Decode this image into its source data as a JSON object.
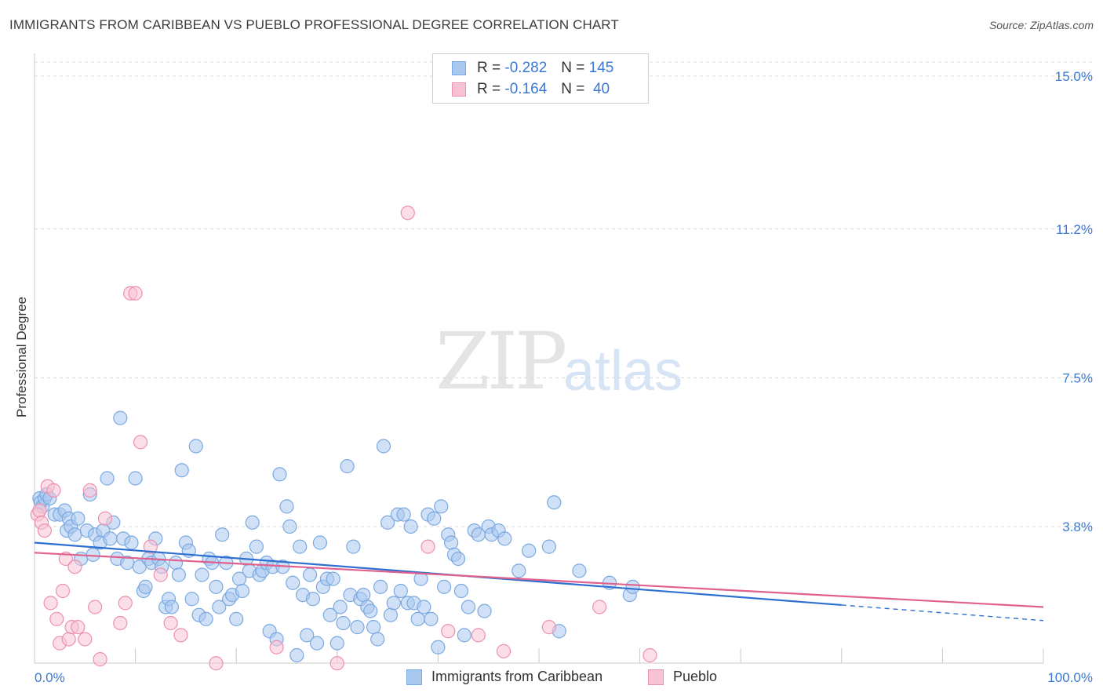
{
  "title": "IMMIGRANTS FROM CARIBBEAN VS PUEBLO PROFESSIONAL DEGREE CORRELATION CHART",
  "source": "Source: ZipAtlas.com",
  "watermark": {
    "zip": "ZIP",
    "atlas": "atlas"
  },
  "legend": {
    "rows": [
      {
        "r_label": "R =",
        "r_value": "-0.282",
        "n_label": "N =",
        "n_value": "145"
      },
      {
        "r_label": "R =",
        "r_value": "-0.164",
        "n_label": "N =",
        "n_value": "40"
      }
    ]
  },
  "colors": {
    "blue_fill": "#a9c8f0",
    "blue_stroke": "#7aa8e0",
    "blue_line": "#2f6fd1",
    "pink_fill": "#f7c2d4",
    "pink_stroke": "#ec8fb0",
    "pink_line": "#e0608e",
    "tick_label": "#3a78d4",
    "grid": "#d8d8d8"
  },
  "chart_data": {
    "type": "scatter",
    "title": "IMMIGRANTS FROM CARIBBEAN VS PUEBLO PROFESSIONAL DEGREE CORRELATION CHART",
    "xlabel": "",
    "ylabel": "Professional Degree",
    "xlim": [
      0,
      100
    ],
    "ylim": [
      0,
      15.5
    ],
    "x_tick_labels": [
      "0.0%",
      "100.0%"
    ],
    "y_ticks": [
      3.8,
      7.5,
      11.2,
      15.0
    ],
    "y_tick_labels": [
      "3.8%",
      "7.5%",
      "11.2%",
      "15.0%"
    ],
    "grid": "horizontal dashed",
    "legend_position": "top-center",
    "series": [
      {
        "name": "Immigrants from Caribbean",
        "color": "#a9c8f0",
        "points": [
          [
            0.5,
            4.5
          ],
          [
            0.6,
            4.4
          ],
          [
            0.8,
            4.3
          ],
          [
            1.0,
            4.5
          ],
          [
            1.2,
            4.6
          ],
          [
            1.5,
            4.5
          ],
          [
            2.0,
            4.1
          ],
          [
            2.5,
            4.1
          ],
          [
            3.0,
            4.2
          ],
          [
            3.2,
            3.7
          ],
          [
            3.4,
            4.0
          ],
          [
            3.6,
            3.8
          ],
          [
            4.0,
            3.6
          ],
          [
            4.3,
            4.0
          ],
          [
            4.6,
            3.0
          ],
          [
            5.2,
            3.7
          ],
          [
            5.5,
            4.6
          ],
          [
            5.8,
            3.1
          ],
          [
            6.0,
            3.6
          ],
          [
            6.5,
            3.4
          ],
          [
            6.8,
            3.7
          ],
          [
            7.2,
            5.0
          ],
          [
            7.5,
            3.5
          ],
          [
            7.8,
            3.9
          ],
          [
            8.2,
            3.0
          ],
          [
            8.5,
            6.5
          ],
          [
            8.8,
            3.5
          ],
          [
            9.2,
            2.9
          ],
          [
            9.6,
            3.4
          ],
          [
            10.0,
            5.0
          ],
          [
            10.4,
            2.8
          ],
          [
            10.8,
            2.2
          ],
          [
            11.0,
            2.3
          ],
          [
            11.3,
            3.0
          ],
          [
            11.6,
            2.9
          ],
          [
            12.0,
            3.5
          ],
          [
            12.3,
            3.0
          ],
          [
            12.6,
            2.8
          ],
          [
            13.0,
            1.8
          ],
          [
            13.3,
            2.0
          ],
          [
            13.6,
            1.8
          ],
          [
            14.0,
            2.9
          ],
          [
            14.3,
            2.6
          ],
          [
            14.6,
            5.2
          ],
          [
            15.0,
            3.4
          ],
          [
            15.3,
            3.2
          ],
          [
            15.6,
            2.0
          ],
          [
            16.0,
            5.8
          ],
          [
            16.3,
            1.6
          ],
          [
            16.6,
            2.6
          ],
          [
            17.0,
            1.5
          ],
          [
            17.3,
            3.0
          ],
          [
            17.6,
            2.9
          ],
          [
            18.0,
            2.3
          ],
          [
            18.3,
            1.8
          ],
          [
            18.6,
            3.6
          ],
          [
            19.0,
            2.9
          ],
          [
            19.3,
            2.0
          ],
          [
            19.6,
            2.1
          ],
          [
            20.0,
            1.5
          ],
          [
            20.3,
            2.5
          ],
          [
            20.6,
            2.2
          ],
          [
            21.0,
            3.0
          ],
          [
            21.3,
            2.7
          ],
          [
            21.6,
            3.9
          ],
          [
            22.0,
            3.3
          ],
          [
            22.3,
            2.6
          ],
          [
            22.6,
            2.7
          ],
          [
            23.0,
            2.9
          ],
          [
            23.3,
            1.2
          ],
          [
            23.6,
            2.8
          ],
          [
            24.0,
            1.0
          ],
          [
            24.3,
            5.1
          ],
          [
            24.6,
            2.8
          ],
          [
            25.0,
            4.3
          ],
          [
            25.3,
            3.8
          ],
          [
            25.6,
            2.4
          ],
          [
            26.0,
            0.6
          ],
          [
            26.3,
            3.3
          ],
          [
            26.6,
            2.1
          ],
          [
            27.0,
            1.1
          ],
          [
            27.3,
            2.6
          ],
          [
            27.6,
            2.0
          ],
          [
            28.0,
            0.9
          ],
          [
            28.3,
            3.4
          ],
          [
            28.6,
            2.3
          ],
          [
            29.0,
            2.5
          ],
          [
            29.3,
            1.6
          ],
          [
            29.6,
            2.5
          ],
          [
            30.0,
            0.9
          ],
          [
            30.3,
            1.8
          ],
          [
            30.6,
            1.4
          ],
          [
            31.0,
            5.3
          ],
          [
            31.3,
            2.1
          ],
          [
            31.6,
            3.3
          ],
          [
            32.0,
            1.3
          ],
          [
            32.3,
            2.0
          ],
          [
            32.6,
            2.1
          ],
          [
            33.0,
            1.8
          ],
          [
            33.3,
            1.7
          ],
          [
            33.6,
            1.3
          ],
          [
            34.0,
            1.0
          ],
          [
            34.3,
            2.3
          ],
          [
            34.6,
            5.8
          ],
          [
            35.0,
            3.9
          ],
          [
            35.3,
            1.6
          ],
          [
            35.6,
            1.9
          ],
          [
            36.0,
            4.1
          ],
          [
            36.3,
            2.2
          ],
          [
            36.6,
            4.1
          ],
          [
            37.0,
            1.9
          ],
          [
            37.3,
            3.8
          ],
          [
            37.6,
            1.9
          ],
          [
            38.0,
            1.5
          ],
          [
            38.3,
            2.5
          ],
          [
            38.6,
            1.8
          ],
          [
            39.0,
            4.1
          ],
          [
            39.3,
            1.5
          ],
          [
            39.6,
            4.0
          ],
          [
            40.0,
            0.8
          ],
          [
            40.3,
            4.3
          ],
          [
            40.6,
            2.3
          ],
          [
            41.0,
            3.6
          ],
          [
            41.3,
            3.4
          ],
          [
            41.6,
            3.1
          ],
          [
            42.0,
            3.0
          ],
          [
            42.3,
            2.2
          ],
          [
            42.6,
            1.1
          ],
          [
            43.0,
            1.8
          ],
          [
            43.6,
            3.7
          ],
          [
            44.0,
            3.6
          ],
          [
            44.6,
            1.7
          ],
          [
            45.0,
            3.8
          ],
          [
            45.3,
            3.6
          ],
          [
            46.0,
            3.7
          ],
          [
            46.6,
            3.5
          ],
          [
            48.0,
            2.7
          ],
          [
            49.0,
            3.2
          ],
          [
            51.0,
            3.3
          ],
          [
            51.5,
            4.4
          ],
          [
            52.0,
            1.2
          ],
          [
            54.0,
            2.7
          ],
          [
            57.0,
            2.4
          ],
          [
            59.0,
            2.1
          ],
          [
            59.3,
            2.3
          ]
        ]
      },
      {
        "name": "Pueblo",
        "color": "#f7c2d4",
        "points": [
          [
            0.3,
            4.1
          ],
          [
            0.5,
            4.2
          ],
          [
            0.7,
            3.9
          ],
          [
            1.0,
            3.7
          ],
          [
            1.3,
            4.8
          ],
          [
            1.6,
            1.9
          ],
          [
            1.9,
            4.7
          ],
          [
            2.2,
            1.5
          ],
          [
            2.5,
            0.9
          ],
          [
            2.8,
            2.2
          ],
          [
            3.1,
            3.0
          ],
          [
            3.4,
            1.0
          ],
          [
            3.7,
            1.3
          ],
          [
            4.0,
            2.8
          ],
          [
            4.3,
            1.3
          ],
          [
            5.0,
            1.0
          ],
          [
            5.5,
            4.7
          ],
          [
            6.0,
            1.8
          ],
          [
            6.5,
            0.5
          ],
          [
            7.0,
            4.0
          ],
          [
            8.5,
            1.4
          ],
          [
            9.0,
            1.9
          ],
          [
            9.5,
            9.6
          ],
          [
            10.0,
            9.6
          ],
          [
            10.5,
            5.9
          ],
          [
            11.5,
            3.3
          ],
          [
            12.5,
            2.6
          ],
          [
            13.5,
            1.4
          ],
          [
            14.5,
            1.1
          ],
          [
            18.0,
            0.4
          ],
          [
            24.0,
            0.8
          ],
          [
            30.0,
            0.4
          ],
          [
            37.0,
            11.6
          ],
          [
            39.0,
            3.3
          ],
          [
            41.0,
            1.2
          ],
          [
            44.0,
            1.1
          ],
          [
            46.5,
            0.7
          ],
          [
            51.0,
            1.3
          ],
          [
            56.0,
            1.8
          ],
          [
            61.0,
            0.6
          ]
        ]
      }
    ],
    "trend_lines": [
      {
        "series": "Immigrants from Caribbean",
        "x": [
          0,
          80
        ],
        "y": [
          3.4,
          1.85
        ],
        "dashed_extension_to": 100
      },
      {
        "series": "Pueblo",
        "x": [
          0,
          100
        ],
        "y": [
          3.15,
          1.8
        ]
      }
    ]
  }
}
